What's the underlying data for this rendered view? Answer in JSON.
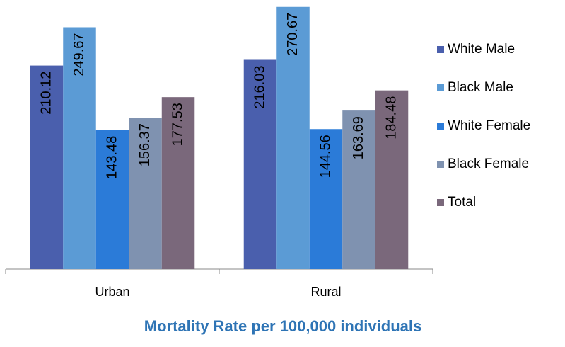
{
  "chart_data": {
    "type": "bar",
    "title": "Mortality Rate per 100,000 individuals",
    "categories": [
      "Urban",
      "Rural"
    ],
    "series": [
      {
        "name": "White Male",
        "color": "#4a5fad",
        "values": [
          210.12,
          216.03
        ]
      },
      {
        "name": "Black Male",
        "color": "#5b9bd5",
        "values": [
          249.67,
          270.67
        ]
      },
      {
        "name": "White Female",
        "color": "#2b7bd8",
        "values": [
          143.48,
          144.56
        ]
      },
      {
        "name": "Black Female",
        "color": "#7f92b0",
        "values": [
          156.37,
          163.69
        ]
      },
      {
        "name": "Total",
        "color": "#7a687b",
        "values": [
          177.53,
          184.48
        ]
      }
    ],
    "ylim": [
      0,
      280
    ],
    "legend": "right"
  }
}
